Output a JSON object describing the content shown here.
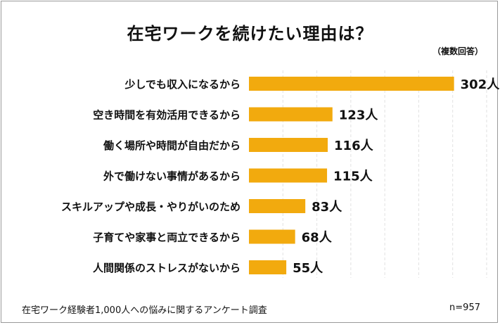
{
  "chart_data": {
    "type": "bar",
    "orientation": "horizontal",
    "title": "在宅ワークを続けたい理由は？",
    "note": "（複数回答）",
    "categories": [
      "少しでも収入になるから",
      "空き時間を有効活用できるから",
      "働く場所や時間が自由だから",
      "外で働けない事情があるから",
      "スキルアップや成長・やりがいのため",
      "子育てや家事と両立できるから",
      "人間関係のストレスがないから"
    ],
    "values": [
      302,
      123,
      116,
      115,
      83,
      68,
      55
    ],
    "value_labels": [
      "302人",
      "123人",
      "116人",
      "115人",
      "83人",
      "68人",
      "55人"
    ],
    "unit": "人",
    "xlim": [
      0,
      350
    ],
    "grid": true,
    "legend": "none",
    "bar_color": "#f2aa0e",
    "source": "在宅ワーク経験者1,000人への悩みに関するアンケート調査",
    "sample_size": "n=957"
  }
}
